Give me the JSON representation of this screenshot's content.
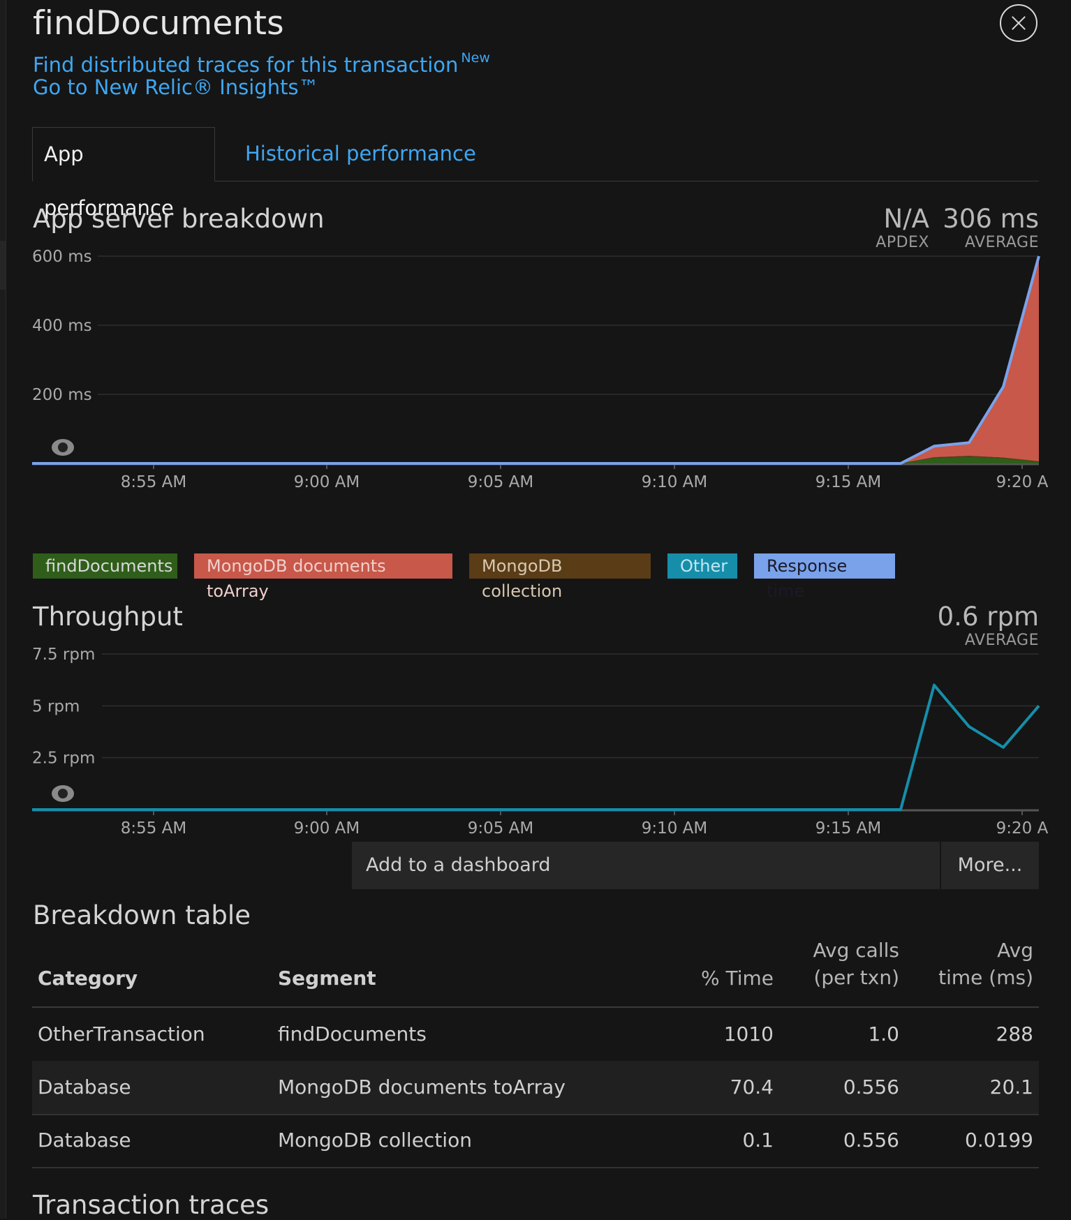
{
  "header": {
    "title": "findDocuments",
    "traces_link": "Find distributed traces for this transaction",
    "traces_badge": "New",
    "insights_link": "Go to New Relic® Insights™"
  },
  "tabs": [
    {
      "label": "App performance",
      "active": true
    },
    {
      "label": "Historical performance",
      "active": false
    }
  ],
  "app_server": {
    "title": "App server breakdown",
    "apdex_value": "N/A",
    "apdex_label": "APDEX",
    "average_value": "306 ms",
    "average_label": "AVERAGE"
  },
  "throughput": {
    "title": "Throughput",
    "average_value": "0.6 rpm",
    "average_label": "AVERAGE"
  },
  "legend": [
    {
      "label": "findDocuments",
      "color": "#2f5e1a"
    },
    {
      "label": "MongoDB documents toArray",
      "color": "#c8584a"
    },
    {
      "label": "MongoDB collection",
      "color": "#5a3c17"
    },
    {
      "label": "Other",
      "color": "#168eaa"
    },
    {
      "label": "Response time",
      "color": "#7aa2ea"
    }
  ],
  "chart_data": [
    {
      "type": "area",
      "yticks": [
        "600 ms",
        "400 ms",
        "200 ms"
      ],
      "ylim": [
        0,
        600
      ],
      "x": [
        "8:51 AM",
        "9:16 AM",
        "9:17 AM",
        "9:18 AM",
        "9:19 AM",
        "9:20 AM"
      ],
      "xticks": [
        "8:55 AM",
        "9:00 AM",
        "9:05 AM",
        "9:10 AM",
        "9:15 AM",
        "9:20 A"
      ],
      "series": [
        {
          "name": "findDocuments",
          "values": [
            0,
            0,
            16,
            20,
            15,
            5
          ]
        },
        {
          "name": "MongoDB documents toArray",
          "values": [
            0,
            0,
            34,
            40,
            205,
            595
          ]
        },
        {
          "name": "MongoDB collection",
          "values": [
            0,
            0,
            2,
            2,
            2,
            1
          ]
        },
        {
          "name": "Response time",
          "values": [
            0,
            0,
            50,
            60,
            222,
            600
          ]
        }
      ]
    },
    {
      "type": "line",
      "yticks": [
        "7.5 rpm",
        "5 rpm",
        "2.5 rpm"
      ],
      "ylim": [
        0,
        7.5
      ],
      "x": [
        "8:51 AM",
        "9:16 AM",
        "9:17 AM",
        "9:18 AM",
        "9:19 AM",
        "9:20 AM"
      ],
      "xticks": [
        "8:55 AM",
        "9:00 AM",
        "9:05 AM",
        "9:10 AM",
        "9:15 AM",
        "9:20 A"
      ],
      "series": [
        {
          "name": "Other",
          "values": [
            0,
            0,
            6.0,
            4.0,
            3.0,
            5.0
          ]
        }
      ]
    }
  ],
  "buttons": {
    "add_dashboard": "Add to a dashboard",
    "more": "More..."
  },
  "breakdown": {
    "title": "Breakdown table",
    "headers": {
      "category": "Category",
      "segment": "Segment",
      "pct_time": "% Time",
      "avg_calls_1": "Avg calls",
      "avg_calls_2": "(per txn)",
      "avg_time_1": "Avg",
      "avg_time_2": "time (ms)"
    },
    "rows": [
      {
        "category": "OtherTransaction",
        "segment": "findDocuments",
        "pct_time": "1010",
        "avg_calls": "1.0",
        "avg_time": "288"
      },
      {
        "category": "Database",
        "segment": "MongoDB documents toArray",
        "pct_time": "70.4",
        "avg_calls": "0.556",
        "avg_time": "20.1"
      },
      {
        "category": "Database",
        "segment": "MongoDB collection",
        "pct_time": "0.1",
        "avg_calls": "0.556",
        "avg_time": "0.0199"
      }
    ]
  },
  "transaction_traces": {
    "title": "Transaction traces"
  }
}
